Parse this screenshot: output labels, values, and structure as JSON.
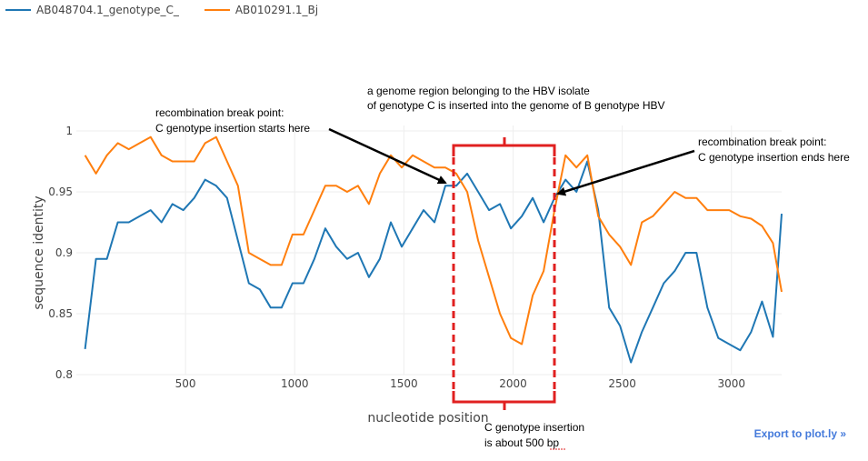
{
  "chart_data": {
    "type": "line",
    "xlabel": "nucleotide position",
    "ylabel": "sequence identity",
    "xlim": [
      0,
      3230
    ],
    "ylim": [
      0.8,
      1.0
    ],
    "x_ticks": [
      500,
      1000,
      1500,
      2000,
      2500,
      3000
    ],
    "y_ticks": [
      0.8,
      0.85,
      0.9,
      0.95,
      1.0
    ],
    "y_tick_labels": [
      "0.8",
      "0.85",
      "0.9",
      "0.95",
      "1"
    ],
    "grid": true,
    "legend_position": "top-left",
    "series": [
      {
        "name": "AB048704.1_genotype_C_",
        "color": "#1f77b4",
        "x": [
          40,
          90,
          140,
          190,
          240,
          290,
          340,
          390,
          440,
          490,
          540,
          590,
          640,
          690,
          740,
          790,
          840,
          890,
          940,
          990,
          1040,
          1090,
          1140,
          1190,
          1240,
          1290,
          1340,
          1390,
          1440,
          1490,
          1540,
          1590,
          1640,
          1690,
          1740,
          1790,
          1840,
          1890,
          1940,
          1990,
          2040,
          2090,
          2140,
          2190,
          2240,
          2290,
          2340,
          2390,
          2440,
          2490,
          2540,
          2590,
          2640,
          2690,
          2740,
          2790,
          2840,
          2890,
          2940,
          2990,
          3040,
          3090,
          3140,
          3190,
          3230
        ],
        "values": [
          0.821,
          0.895,
          0.895,
          0.925,
          0.925,
          0.93,
          0.935,
          0.925,
          0.94,
          0.935,
          0.945,
          0.96,
          0.955,
          0.945,
          0.91,
          0.875,
          0.87,
          0.855,
          0.855,
          0.875,
          0.875,
          0.895,
          0.92,
          0.905,
          0.895,
          0.9,
          0.88,
          0.895,
          0.925,
          0.905,
          0.92,
          0.935,
          0.925,
          0.955,
          0.955,
          0.965,
          0.95,
          0.935,
          0.94,
          0.92,
          0.93,
          0.945,
          0.925,
          0.945,
          0.96,
          0.95,
          0.975,
          0.935,
          0.855,
          0.84,
          0.81,
          0.835,
          0.855,
          0.875,
          0.885,
          0.9,
          0.9,
          0.855,
          0.83,
          0.825,
          0.82,
          0.835,
          0.86,
          0.831,
          0.932
        ]
      },
      {
        "name": "AB010291.1_Bj",
        "color": "#ff7f0e",
        "x": [
          40,
          90,
          140,
          190,
          240,
          290,
          340,
          390,
          440,
          490,
          540,
          590,
          640,
          690,
          740,
          790,
          840,
          890,
          940,
          990,
          1040,
          1090,
          1140,
          1190,
          1240,
          1290,
          1340,
          1390,
          1440,
          1490,
          1540,
          1590,
          1640,
          1690,
          1740,
          1790,
          1840,
          1890,
          1940,
          1990,
          2040,
          2090,
          2140,
          2190,
          2240,
          2290,
          2340,
          2390,
          2440,
          2490,
          2540,
          2590,
          2640,
          2690,
          2740,
          2790,
          2840,
          2890,
          2940,
          2990,
          3040,
          3090,
          3140,
          3190,
          3230
        ],
        "values": [
          0.98,
          0.965,
          0.98,
          0.99,
          0.985,
          0.99,
          0.995,
          0.98,
          0.975,
          0.975,
          0.975,
          0.99,
          0.995,
          0.975,
          0.955,
          0.9,
          0.895,
          0.89,
          0.89,
          0.915,
          0.915,
          0.935,
          0.955,
          0.955,
          0.95,
          0.955,
          0.94,
          0.965,
          0.98,
          0.97,
          0.98,
          0.975,
          0.97,
          0.97,
          0.965,
          0.95,
          0.91,
          0.88,
          0.85,
          0.83,
          0.825,
          0.865,
          0.885,
          0.935,
          0.98,
          0.97,
          0.98,
          0.93,
          0.915,
          0.905,
          0.89,
          0.925,
          0.93,
          0.94,
          0.95,
          0.945,
          0.945,
          0.935,
          0.935,
          0.935,
          0.93,
          0.928,
          0.922,
          0.908,
          0.868
        ]
      }
    ],
    "annotations": {
      "region_line1": "a genome region belonging to the HBV isolate",
      "region_line2": "of genotype C is  inserted into the genome of B genotype HBV",
      "start_line1": "recombination break point:",
      "start_line2": "C genotype insertion starts here",
      "end_line1": "recombination break point:",
      "end_line2": "C genotype insertion ends here",
      "size_line1": "C genotype insertion",
      "size_line2": "is about 500 bp"
    }
  },
  "export_link": "Export to plot.ly »"
}
